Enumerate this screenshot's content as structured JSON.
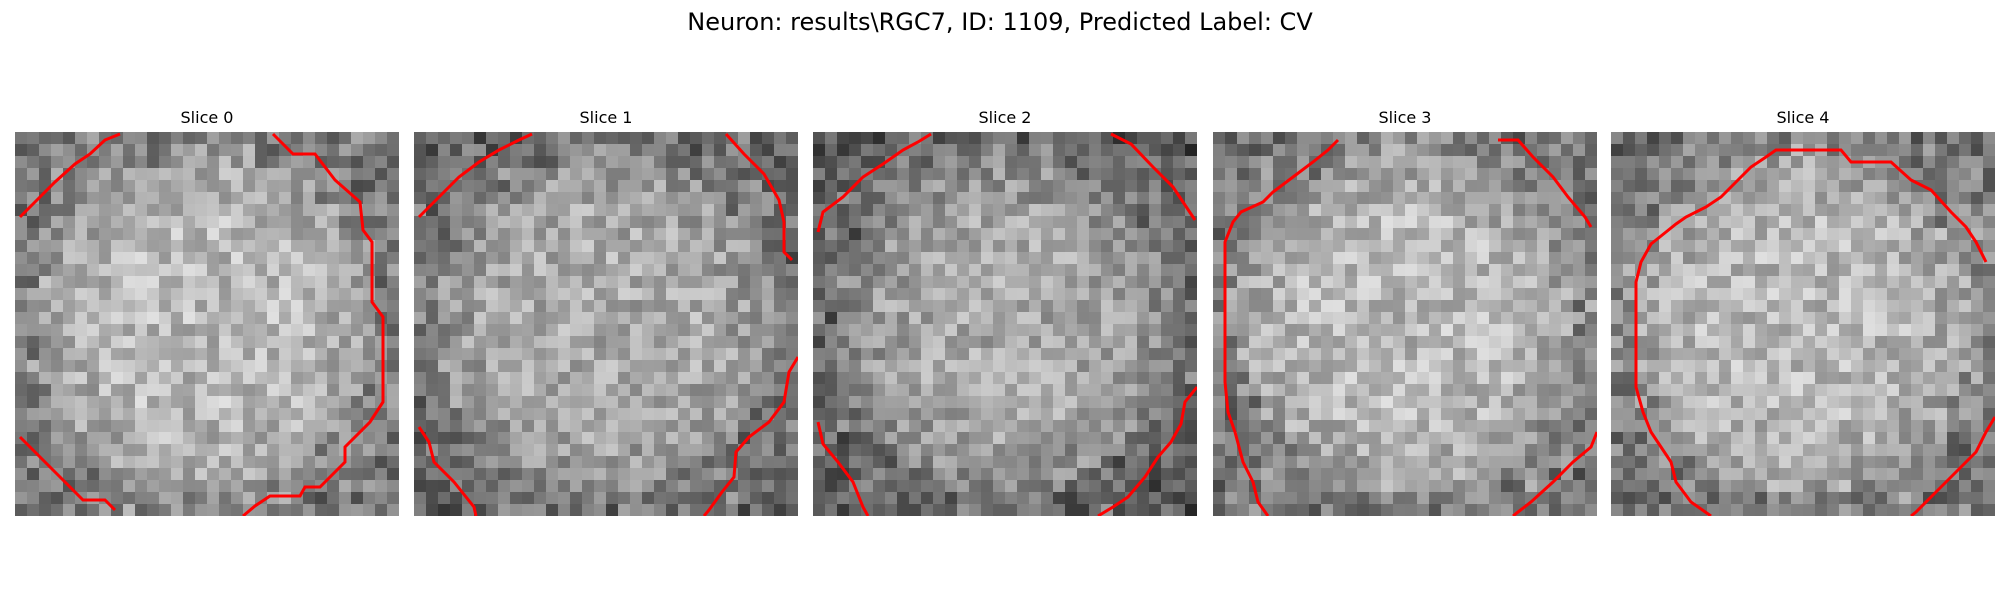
{
  "figure": {
    "title": "Neuron: results\\RGC7, ID: 1109, Predicted Label: CV",
    "contour_color": "#ff0000"
  },
  "slices": [
    {
      "title": "Slice 0"
    },
    {
      "title": "Slice 1"
    },
    {
      "title": "Slice 2"
    },
    {
      "title": "Slice 3"
    },
    {
      "title": "Slice 4"
    }
  ]
}
